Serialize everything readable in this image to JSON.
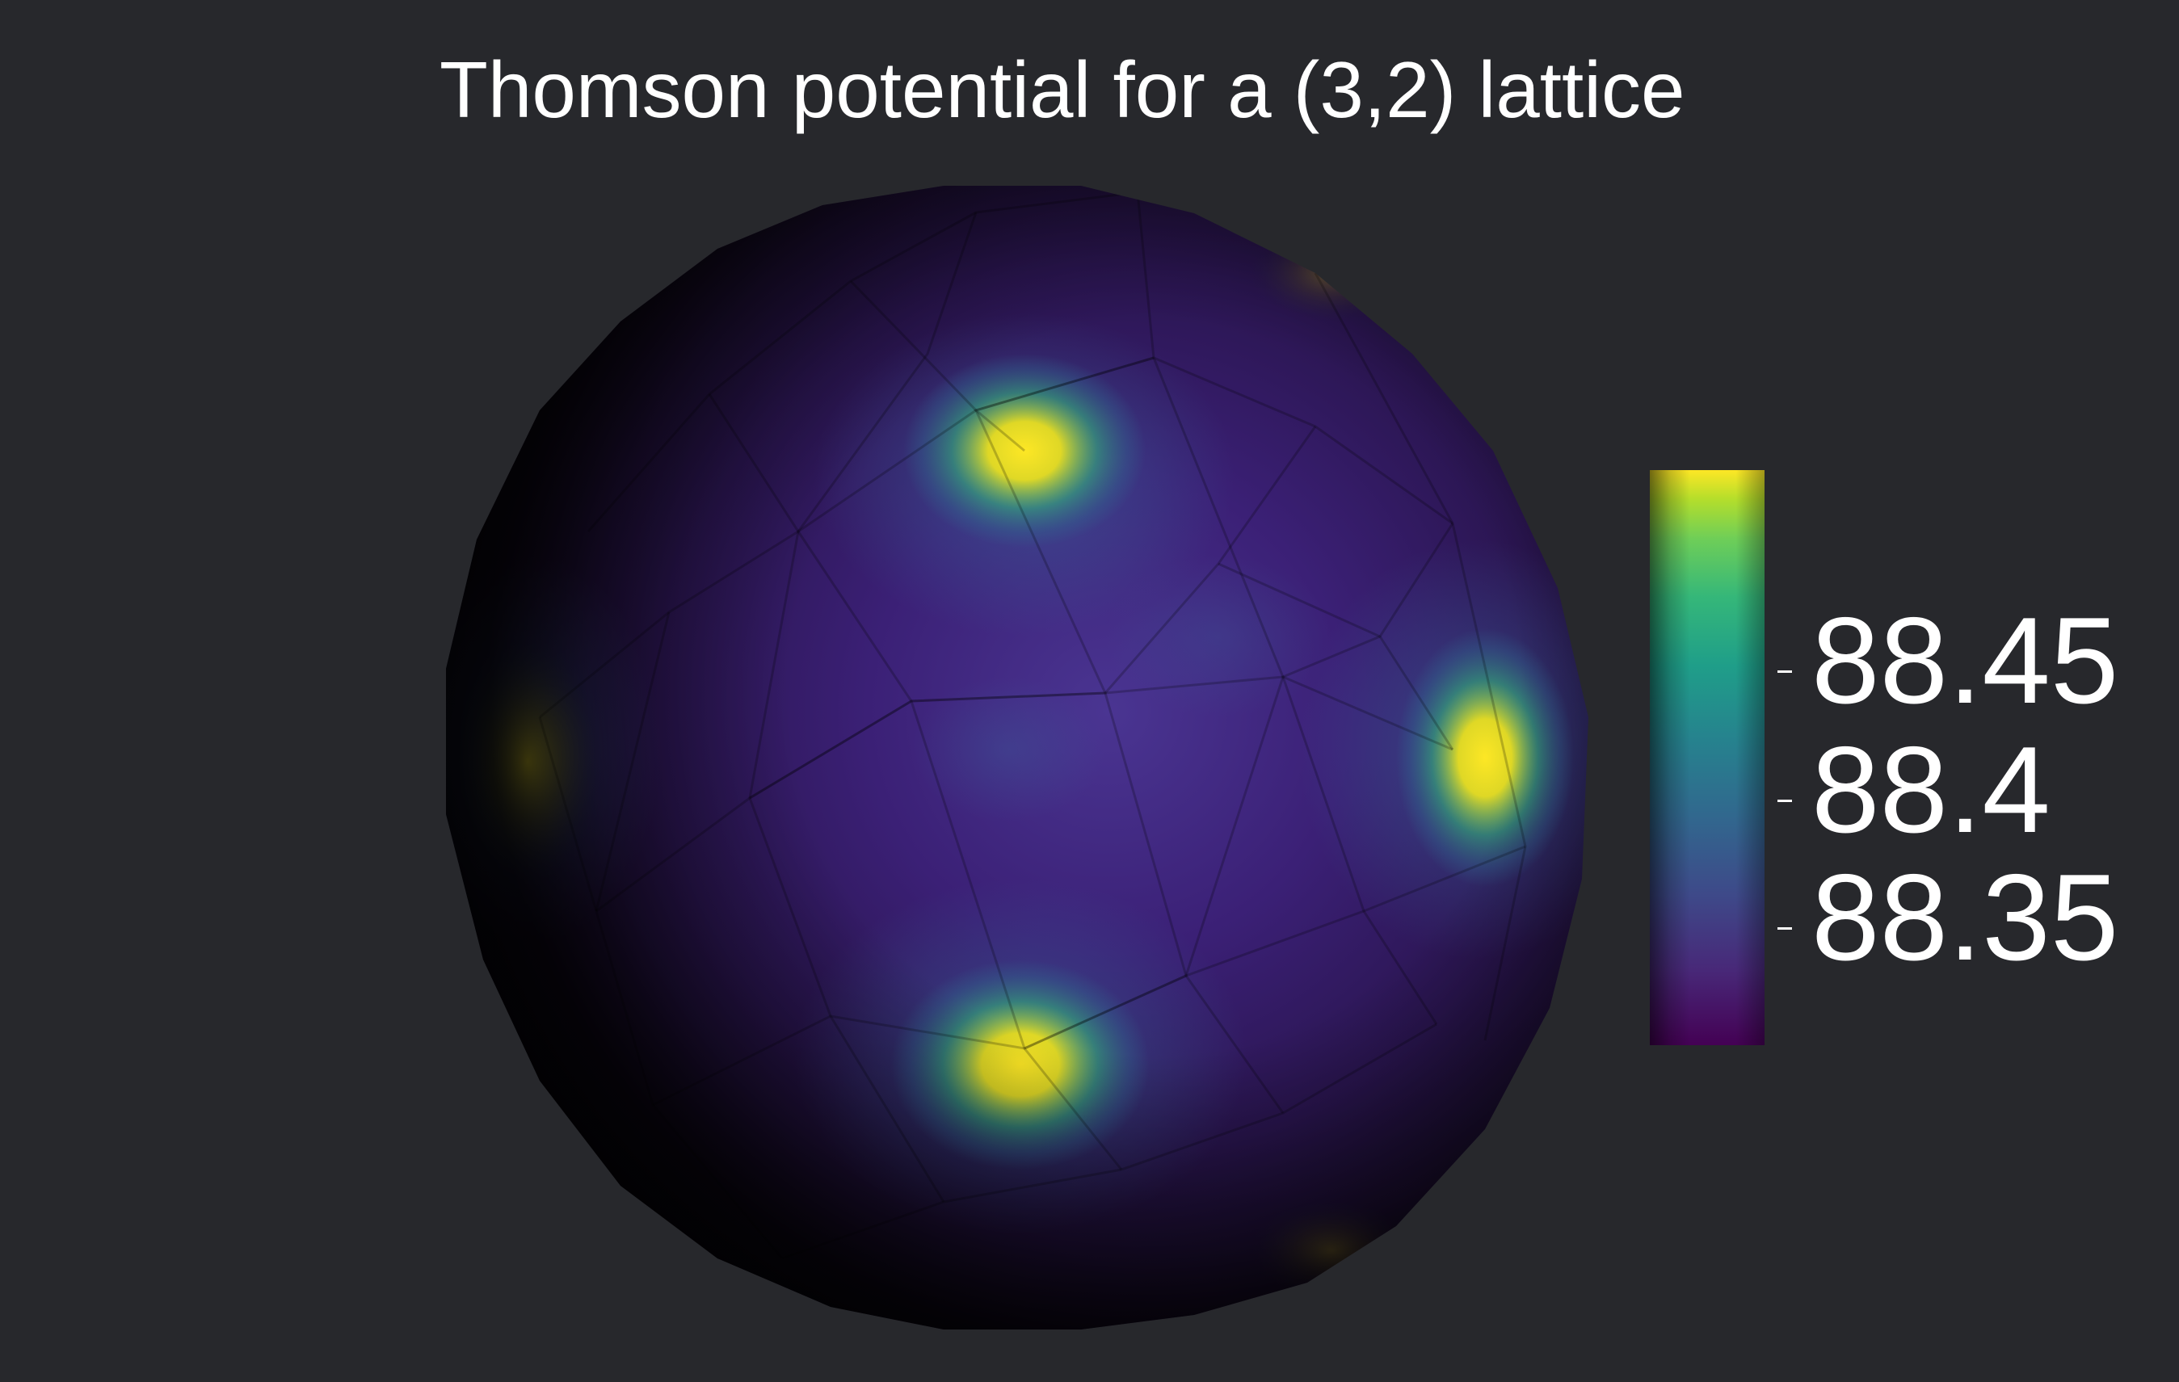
{
  "title": "Thomson potential for a (3,2) lattice",
  "colorbar": {
    "colormap": "viridis",
    "range_min": 88.31,
    "range_max": 88.51,
    "ticks": [
      {
        "label": "88.45",
        "value": 88.45
      },
      {
        "label": "88.4",
        "value": 88.4
      },
      {
        "label": "88.35",
        "value": 88.35
      }
    ]
  },
  "colors": {
    "background": "#27282c",
    "text": "#ffffff",
    "viridis_low": "#440154",
    "viridis_mid": "#21918c",
    "viridis_high": "#fde725"
  }
}
